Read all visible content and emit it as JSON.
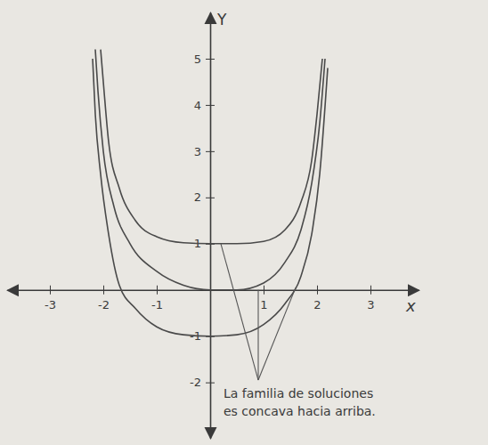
{
  "chart_data": {
    "type": "line",
    "x_label": "x",
    "y_label": "Y",
    "xlim": [
      -3.8,
      3.9
    ],
    "ylim": [
      -3.2,
      6
    ],
    "xticks": [
      -3,
      -2,
      -1,
      1,
      2,
      3
    ],
    "yticks": [
      -2,
      -1,
      1,
      2,
      3,
      4,
      5
    ],
    "grid": false,
    "series": [
      {
        "color": "#4a4a4a",
        "x": [
          -2.05,
          -2.0,
          -1.9,
          -1.7,
          -1.4,
          -1.0,
          -0.5,
          0,
          0.5,
          1.0,
          1.4,
          1.7,
          1.9,
          2.0,
          2.1
        ],
        "values": [
          5.2,
          4.5,
          3.2,
          2.2,
          1.5,
          1.15,
          1.02,
          1,
          1.0,
          1.05,
          1.3,
          1.9,
          2.8,
          3.8,
          5.0
        ]
      },
      {
        "color": "#4a4a4a",
        "x": [
          -2.15,
          -2.1,
          -2.0,
          -1.8,
          -1.5,
          -1.0,
          -0.5,
          0,
          0.5,
          1.0,
          1.4,
          1.7,
          1.9,
          2.05,
          2.15
        ],
        "values": [
          5.2,
          4.3,
          3.0,
          1.8,
          1.0,
          0.4,
          0.1,
          0,
          0.0,
          0.15,
          0.6,
          1.3,
          2.3,
          3.6,
          5.0
        ]
      },
      {
        "color": "#4a4a4a",
        "x": [
          -2.2,
          -2.15,
          -2.05,
          -1.9,
          -1.7,
          -1.4,
          -1.0,
          -0.5,
          0,
          0.5,
          1.0,
          1.4,
          1.7,
          1.9,
          2.05,
          2.2
        ],
        "values": [
          5.0,
          3.8,
          2.5,
          1.2,
          0.1,
          -0.4,
          -0.8,
          -0.97,
          -1,
          -0.97,
          -0.75,
          -0.3,
          0.3,
          1.2,
          2.5,
          4.8
        ]
      }
    ],
    "annotations": [
      {
        "text": "La familia de soluciones es concava hacia arriba.",
        "x": 0.9,
        "y": -1.95,
        "targets": [
          {
            "x": 0.2,
            "y": 1
          },
          {
            "x": 0.9,
            "y": 0
          },
          {
            "x": 1.6,
            "y": 0.05
          }
        ]
      }
    ]
  }
}
